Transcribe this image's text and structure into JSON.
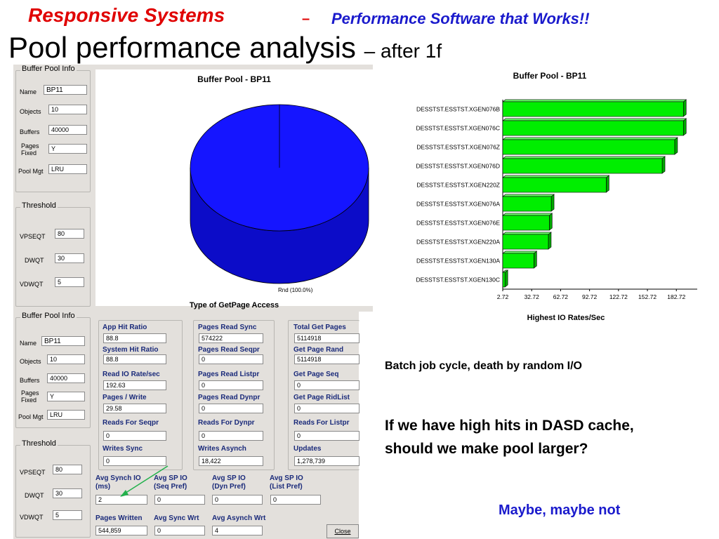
{
  "header": {
    "brand": "Responsive Systems",
    "dash": "–",
    "tagline": "Performance Software that Works!!",
    "title": "Pool performance analysis",
    "subtitle": "– after 1f"
  },
  "top_panel": {
    "info_group_title": "Buffer Pool Info",
    "name_label": "Name",
    "name_value": "BP11",
    "objects_label": "Objects",
    "objects_value": "10",
    "buffers_label": "Buffers",
    "buffers_value": "40000",
    "pages_fixed_label_1": "Pages",
    "pages_fixed_label_2": "Fixed",
    "pages_fixed_value": "Y",
    "pool_mgt_label": "Pool Mgt",
    "pool_mgt_value": "LRU",
    "threshold_title": "Threshold",
    "vpseqt_label": "VPSEQT",
    "vpseqt_value": "80",
    "dwqt_label": "DWQT",
    "dwqt_value": "30",
    "vdwqt_label": "VDWQT",
    "vdwqt_value": "5",
    "pie": {
      "title": "Buffer Pool - BP11",
      "slice_label": "Rnd (100.0%)",
      "xlabel": "Type of GetPage Access",
      "color": "#1515ff"
    }
  },
  "bottom_panel": {
    "info_group_title": "Buffer Pool Info",
    "name_label": "Name",
    "name_value": "BP11",
    "objects_label": "Objects",
    "objects_value": "10",
    "buffers_label": "Buffers",
    "buffers_value": "40000",
    "pages_fixed_label_1": "Pages",
    "pages_fixed_label_2": "Fixed",
    "pages_fixed_value": "Y",
    "pool_mgt_label": "Pool Mgt",
    "pool_mgt_value": "LRU",
    "threshold_title": "Threshold",
    "vpseqt_label": "VPSEQT",
    "vpseqt_value": "80",
    "dwqt_label": "DWQT",
    "dwqt_value": "30",
    "vdwqt_label": "VDWQT",
    "vdwqt_value": "5",
    "metrics": {
      "app_hit_ratio": {
        "label": "App Hit Ratio",
        "value": "88.8"
      },
      "system_hit_ratio": {
        "label": "System Hit Ratio",
        "value": "88.8"
      },
      "read_io_rate": {
        "label": "Read IO Rate/sec",
        "value": "192.63"
      },
      "pages_write": {
        "label": "Pages / Write",
        "value": "29.58"
      },
      "reads_for_seqpr": {
        "label": "Reads For Seqpr",
        "value": "0"
      },
      "writes_sync": {
        "label": "Writes Sync",
        "value": "0"
      },
      "pages_read_sync": {
        "label": "Pages Read Sync",
        "value": "574222"
      },
      "pages_read_seqpr": {
        "label": "Pages Read Seqpr",
        "value": "0"
      },
      "pages_read_listpr": {
        "label": "Pages Read Listpr",
        "value": "0"
      },
      "pages_read_dynpr": {
        "label": "Pages Read Dynpr",
        "value": "0"
      },
      "reads_for_dynpr": {
        "label": "Reads For Dynpr",
        "value": "0"
      },
      "writes_asynch": {
        "label": "Writes Asynch",
        "value": "18,422"
      },
      "total_get_pages": {
        "label": "Total Get Pages",
        "value": "5114918"
      },
      "get_page_rand": {
        "label": "Get Page Rand",
        "value": "5114918"
      },
      "get_page_seq": {
        "label": "Get Page Seq",
        "value": "0"
      },
      "get_page_ridlist": {
        "label": "Get Page RidList",
        "value": "0"
      },
      "reads_for_listpr": {
        "label": "Reads For Listpr",
        "value": "0"
      },
      "updates": {
        "label": "Updates",
        "value": "1,278,739"
      },
      "avg_synch_io_1": "Avg Synch IO",
      "avg_synch_io_2": "(ms)",
      "avg_synch_io_value": "2",
      "avg_sp_io_seq_1": "Avg SP IO",
      "avg_sp_io_seq_2": "(Seq Pref)",
      "avg_sp_io_seq_value": "0",
      "avg_sp_io_dyn_1": "Avg SP IO",
      "avg_sp_io_dyn_2": "(Dyn Pref)",
      "avg_sp_io_dyn_value": "0",
      "avg_sp_io_list_1": "Avg SP IO",
      "avg_sp_io_list_2": "(List Pref)",
      "avg_sp_io_list_value": "0",
      "pages_written": {
        "label": "Pages Written",
        "value": "544,859"
      },
      "avg_sync_wrt": {
        "label": "Avg Sync Wrt",
        "value": "0"
      },
      "avg_asynch_wrt": {
        "label": "Avg Asynch Wrt",
        "value": "4"
      }
    },
    "close_label": "Close"
  },
  "chart_data": {
    "type": "bar",
    "orientation": "horizontal",
    "title": "Buffer Pool - BP11",
    "xlabel": "Highest IO Rates/Sec",
    "ylabel": "",
    "categories": [
      "DESSTST.ESSTST.XGEN076B",
      "DESSTST.ESSTST.XGEN076C",
      "DESSTST.ESSTST.XGEN076Z",
      "DESSTST.ESSTST.XGEN076D",
      "DESSTST.ESSTST.XGEN220Z",
      "DESSTST.ESSTST.XGEN076A",
      "DESSTST.ESSTST.XGEN076E",
      "DESSTST.ESSTST.XGEN220A",
      "DESSTST.ESSTST.XGEN130A",
      "DESSTST.ESSTST.XGEN130C"
    ],
    "values": [
      190,
      190,
      181,
      168,
      110,
      53,
      51,
      50,
      35,
      5
    ],
    "x_ticks": [
      "2.72",
      "32.72",
      "62.72",
      "92.72",
      "122.72",
      "152.72",
      "182.72"
    ],
    "xlim": [
      2.72,
      200
    ],
    "bar_color": "#00ee00",
    "grid": false
  },
  "notes": {
    "line1": "Batch job cycle, death by random I/O",
    "question": "If we have high hits in DASD cache, should we make pool larger?",
    "answer": "Maybe, maybe not"
  }
}
